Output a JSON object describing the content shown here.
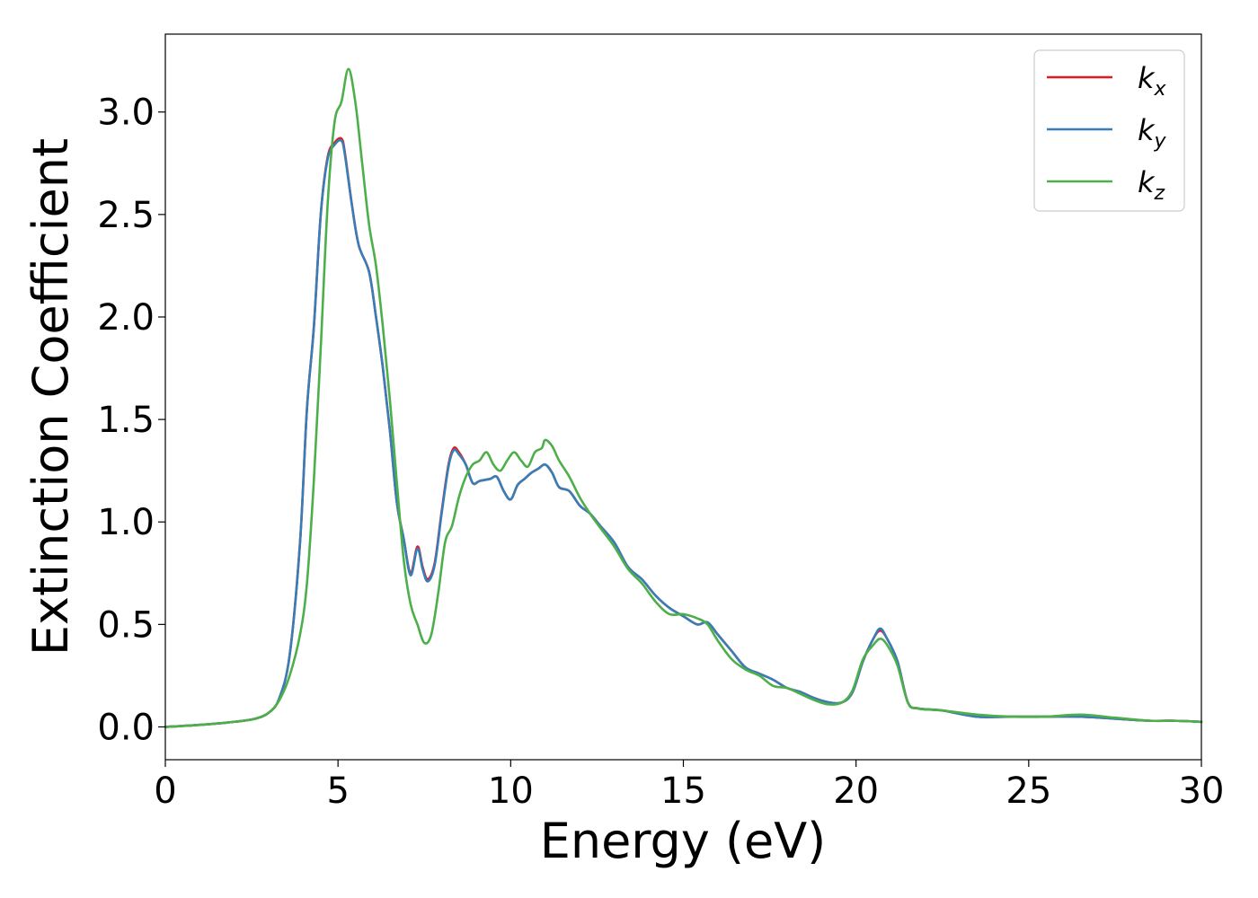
{
  "chart_data": {
    "type": "line",
    "xlabel": "Energy (eV)",
    "ylabel": "Extinction Coefficient",
    "xlim": [
      0,
      30
    ],
    "ylim": [
      -0.16,
      3.38
    ],
    "xticks": [
      0,
      5,
      10,
      15,
      20,
      25,
      30
    ],
    "xtick_labels": [
      "0",
      "5",
      "10",
      "15",
      "20",
      "25",
      "30"
    ],
    "yticks": [
      0.0,
      0.5,
      1.0,
      1.5,
      2.0,
      2.5,
      3.0
    ],
    "ytick_labels": [
      "0.0",
      "0.5",
      "1.0",
      "1.5",
      "2.0",
      "2.5",
      "3.0"
    ],
    "grid": false,
    "legend_position": "top-right",
    "series": [
      {
        "name": "k",
        "subscript": "x",
        "color": "#e41a1c",
        "points": [
          [
            0,
            0
          ],
          [
            1,
            0.01
          ],
          [
            2,
            0.025
          ],
          [
            2.6,
            0.04
          ],
          [
            3,
            0.07
          ],
          [
            3.3,
            0.14
          ],
          [
            3.6,
            0.35
          ],
          [
            3.9,
            0.9
          ],
          [
            4.1,
            1.55
          ],
          [
            4.3,
            1.95
          ],
          [
            4.5,
            2.5
          ],
          [
            4.7,
            2.78
          ],
          [
            4.9,
            2.85
          ],
          [
            5.1,
            2.87
          ],
          [
            5.2,
            2.8
          ],
          [
            5.4,
            2.55
          ],
          [
            5.6,
            2.35
          ],
          [
            5.9,
            2.22
          ],
          [
            6.1,
            2.0
          ],
          [
            6.3,
            1.75
          ],
          [
            6.5,
            1.45
          ],
          [
            6.7,
            1.1
          ],
          [
            6.9,
            0.92
          ],
          [
            7.1,
            0.75
          ],
          [
            7.3,
            0.88
          ],
          [
            7.45,
            0.78
          ],
          [
            7.6,
            0.72
          ],
          [
            7.8,
            0.8
          ],
          [
            8.0,
            1.05
          ],
          [
            8.2,
            1.28
          ],
          [
            8.35,
            1.36
          ],
          [
            8.5,
            1.34
          ],
          [
            8.7,
            1.28
          ],
          [
            8.9,
            1.19
          ],
          [
            9.1,
            1.2
          ],
          [
            9.4,
            1.21
          ],
          [
            9.6,
            1.22
          ],
          [
            9.8,
            1.15
          ],
          [
            10.0,
            1.11
          ],
          [
            10.2,
            1.18
          ],
          [
            10.4,
            1.21
          ],
          [
            10.6,
            1.24
          ],
          [
            10.8,
            1.26
          ],
          [
            11.0,
            1.28
          ],
          [
            11.2,
            1.24
          ],
          [
            11.4,
            1.17
          ],
          [
            11.7,
            1.15
          ],
          [
            12.0,
            1.08
          ],
          [
            12.3,
            1.04
          ],
          [
            12.6,
            0.98
          ],
          [
            13.0,
            0.9
          ],
          [
            13.4,
            0.78
          ],
          [
            13.8,
            0.72
          ],
          [
            14.2,
            0.64
          ],
          [
            14.6,
            0.58
          ],
          [
            15.0,
            0.54
          ],
          [
            15.4,
            0.5
          ],
          [
            15.7,
            0.51
          ],
          [
            16.0,
            0.45
          ],
          [
            16.4,
            0.37
          ],
          [
            16.8,
            0.29
          ],
          [
            17.2,
            0.26
          ],
          [
            17.6,
            0.23
          ],
          [
            18.0,
            0.19
          ],
          [
            18.4,
            0.17
          ],
          [
            18.8,
            0.14
          ],
          [
            19.2,
            0.12
          ],
          [
            19.6,
            0.12
          ],
          [
            19.9,
            0.17
          ],
          [
            20.2,
            0.32
          ],
          [
            20.5,
            0.43
          ],
          [
            20.7,
            0.47
          ],
          [
            20.9,
            0.43
          ],
          [
            21.2,
            0.32
          ],
          [
            21.5,
            0.12
          ],
          [
            21.8,
            0.09
          ],
          [
            22.5,
            0.08
          ],
          [
            23.5,
            0.05
          ],
          [
            24.5,
            0.05
          ],
          [
            25.5,
            0.05
          ],
          [
            26.5,
            0.05
          ],
          [
            27.5,
            0.04
          ],
          [
            28.5,
            0.03
          ],
          [
            29.2,
            0.03
          ],
          [
            30,
            0.025
          ]
        ]
      },
      {
        "name": "k",
        "subscript": "y",
        "color": "#377eb8",
        "points": [
          [
            0,
            0
          ],
          [
            1,
            0.01
          ],
          [
            2,
            0.025
          ],
          [
            2.6,
            0.04
          ],
          [
            3,
            0.07
          ],
          [
            3.3,
            0.14
          ],
          [
            3.6,
            0.35
          ],
          [
            3.9,
            0.9
          ],
          [
            4.1,
            1.55
          ],
          [
            4.3,
            1.95
          ],
          [
            4.5,
            2.5
          ],
          [
            4.7,
            2.77
          ],
          [
            4.9,
            2.84
          ],
          [
            5.1,
            2.86
          ],
          [
            5.2,
            2.79
          ],
          [
            5.4,
            2.55
          ],
          [
            5.6,
            2.35
          ],
          [
            5.9,
            2.22
          ],
          [
            6.1,
            2.0
          ],
          [
            6.3,
            1.75
          ],
          [
            6.5,
            1.45
          ],
          [
            6.7,
            1.1
          ],
          [
            6.9,
            0.92
          ],
          [
            7.1,
            0.74
          ],
          [
            7.3,
            0.87
          ],
          [
            7.45,
            0.77
          ],
          [
            7.6,
            0.71
          ],
          [
            7.8,
            0.79
          ],
          [
            8.0,
            1.04
          ],
          [
            8.2,
            1.27
          ],
          [
            8.35,
            1.35
          ],
          [
            8.5,
            1.33
          ],
          [
            8.7,
            1.28
          ],
          [
            8.9,
            1.19
          ],
          [
            9.1,
            1.2
          ],
          [
            9.4,
            1.21
          ],
          [
            9.6,
            1.22
          ],
          [
            9.8,
            1.15
          ],
          [
            10.0,
            1.11
          ],
          [
            10.2,
            1.18
          ],
          [
            10.4,
            1.21
          ],
          [
            10.6,
            1.24
          ],
          [
            10.8,
            1.26
          ],
          [
            11.0,
            1.28
          ],
          [
            11.2,
            1.24
          ],
          [
            11.4,
            1.17
          ],
          [
            11.7,
            1.15
          ],
          [
            12.0,
            1.08
          ],
          [
            12.3,
            1.04
          ],
          [
            12.6,
            0.98
          ],
          [
            13.0,
            0.9
          ],
          [
            13.4,
            0.78
          ],
          [
            13.8,
            0.72
          ],
          [
            14.2,
            0.64
          ],
          [
            14.6,
            0.58
          ],
          [
            15.0,
            0.54
          ],
          [
            15.4,
            0.5
          ],
          [
            15.7,
            0.51
          ],
          [
            16.0,
            0.45
          ],
          [
            16.4,
            0.37
          ],
          [
            16.8,
            0.29
          ],
          [
            17.2,
            0.26
          ],
          [
            17.6,
            0.23
          ],
          [
            18.0,
            0.19
          ],
          [
            18.4,
            0.17
          ],
          [
            18.8,
            0.14
          ],
          [
            19.2,
            0.12
          ],
          [
            19.6,
            0.12
          ],
          [
            19.9,
            0.17
          ],
          [
            20.2,
            0.32
          ],
          [
            20.5,
            0.43
          ],
          [
            20.7,
            0.48
          ],
          [
            20.9,
            0.43
          ],
          [
            21.2,
            0.32
          ],
          [
            21.5,
            0.12
          ],
          [
            21.8,
            0.09
          ],
          [
            22.5,
            0.08
          ],
          [
            23.5,
            0.05
          ],
          [
            24.5,
            0.05
          ],
          [
            25.5,
            0.05
          ],
          [
            26.5,
            0.05
          ],
          [
            27.5,
            0.04
          ],
          [
            28.5,
            0.03
          ],
          [
            29.2,
            0.03
          ],
          [
            30,
            0.025
          ]
        ]
      },
      {
        "name": "k",
        "subscript": "z",
        "color": "#4daf4a",
        "points": [
          [
            0,
            0
          ],
          [
            1,
            0.01
          ],
          [
            2,
            0.025
          ],
          [
            2.6,
            0.04
          ],
          [
            3,
            0.07
          ],
          [
            3.3,
            0.13
          ],
          [
            3.6,
            0.25
          ],
          [
            3.9,
            0.45
          ],
          [
            4.1,
            0.7
          ],
          [
            4.3,
            1.2
          ],
          [
            4.5,
            1.85
          ],
          [
            4.7,
            2.55
          ],
          [
            4.9,
            2.95
          ],
          [
            5.1,
            3.05
          ],
          [
            5.3,
            3.21
          ],
          [
            5.5,
            3.05
          ],
          [
            5.7,
            2.75
          ],
          [
            5.9,
            2.45
          ],
          [
            6.1,
            2.25
          ],
          [
            6.3,
            1.95
          ],
          [
            6.5,
            1.6
          ],
          [
            6.7,
            1.2
          ],
          [
            6.9,
            0.82
          ],
          [
            7.1,
            0.6
          ],
          [
            7.3,
            0.5
          ],
          [
            7.5,
            0.41
          ],
          [
            7.7,
            0.45
          ],
          [
            7.9,
            0.65
          ],
          [
            8.1,
            0.9
          ],
          [
            8.3,
            0.98
          ],
          [
            8.5,
            1.12
          ],
          [
            8.7,
            1.22
          ],
          [
            8.9,
            1.28
          ],
          [
            9.1,
            1.3
          ],
          [
            9.3,
            1.34
          ],
          [
            9.5,
            1.28
          ],
          [
            9.7,
            1.25
          ],
          [
            9.9,
            1.3
          ],
          [
            10.1,
            1.34
          ],
          [
            10.3,
            1.3
          ],
          [
            10.5,
            1.27
          ],
          [
            10.7,
            1.34
          ],
          [
            10.9,
            1.36
          ],
          [
            11.0,
            1.4
          ],
          [
            11.2,
            1.37
          ],
          [
            11.4,
            1.3
          ],
          [
            11.7,
            1.22
          ],
          [
            12.0,
            1.12
          ],
          [
            12.3,
            1.04
          ],
          [
            12.6,
            0.97
          ],
          [
            13.0,
            0.88
          ],
          [
            13.4,
            0.77
          ],
          [
            13.8,
            0.7
          ],
          [
            14.2,
            0.61
          ],
          [
            14.6,
            0.55
          ],
          [
            15.0,
            0.55
          ],
          [
            15.4,
            0.53
          ],
          [
            15.7,
            0.5
          ],
          [
            16.0,
            0.42
          ],
          [
            16.4,
            0.33
          ],
          [
            16.8,
            0.28
          ],
          [
            17.2,
            0.25
          ],
          [
            17.6,
            0.2
          ],
          [
            18.0,
            0.19
          ],
          [
            18.4,
            0.16
          ],
          [
            18.8,
            0.13
          ],
          [
            19.2,
            0.11
          ],
          [
            19.6,
            0.12
          ],
          [
            19.9,
            0.18
          ],
          [
            20.2,
            0.33
          ],
          [
            20.5,
            0.4
          ],
          [
            20.7,
            0.43
          ],
          [
            20.9,
            0.4
          ],
          [
            21.2,
            0.3
          ],
          [
            21.5,
            0.12
          ],
          [
            21.8,
            0.09
          ],
          [
            22.5,
            0.08
          ],
          [
            23.5,
            0.06
          ],
          [
            24.5,
            0.05
          ],
          [
            25.5,
            0.05
          ],
          [
            26.5,
            0.06
          ],
          [
            27.5,
            0.045
          ],
          [
            28.5,
            0.03
          ],
          [
            29.2,
            0.03
          ],
          [
            30,
            0.025
          ]
        ]
      }
    ]
  }
}
